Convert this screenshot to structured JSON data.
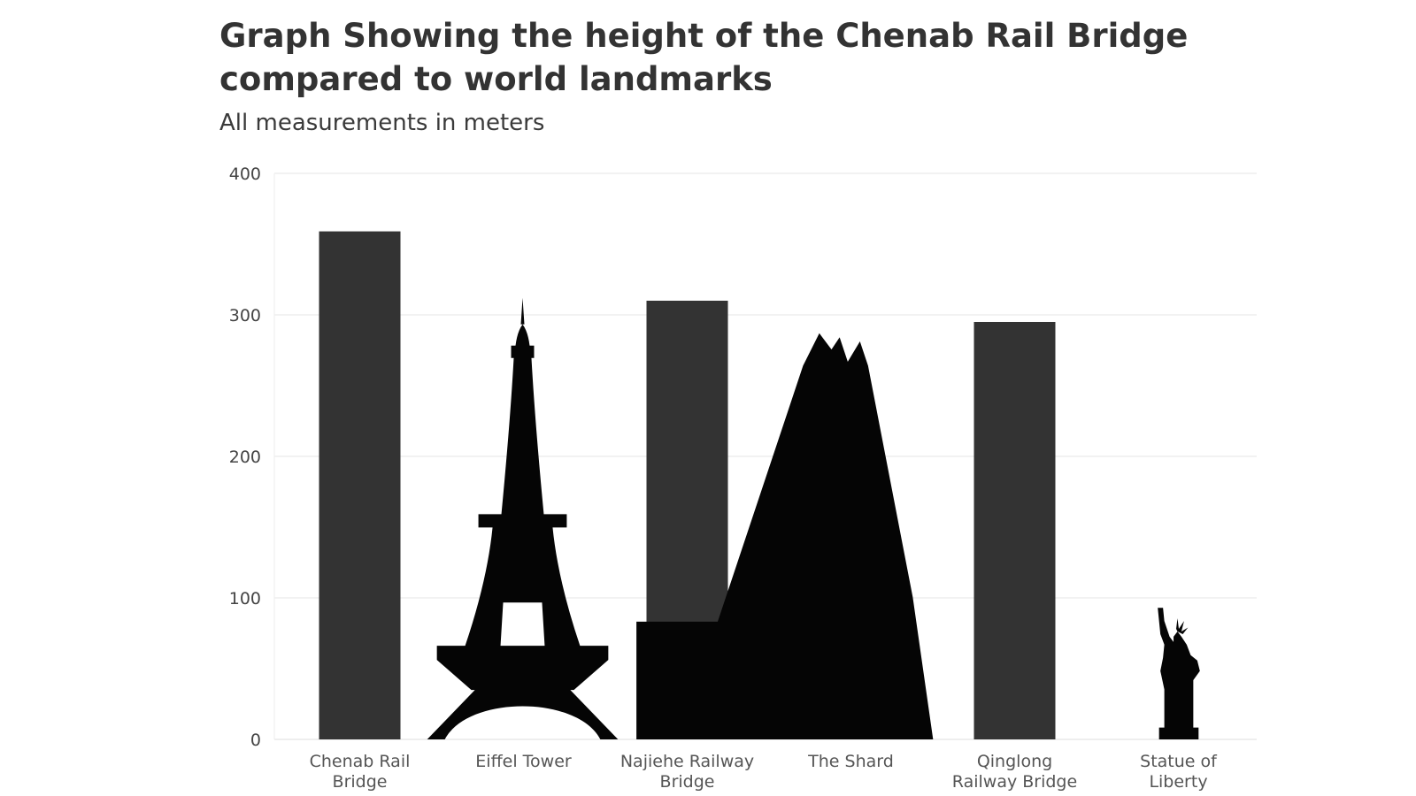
{
  "chart_data": {
    "type": "bar",
    "title": "Graph Showing the height of the Chenab Rail Bridge compared to world landmarks",
    "subtitle": "All measurements in meters",
    "xlabel": "",
    "ylabel": "",
    "ylim": [
      0,
      400
    ],
    "yticks": [
      "0",
      "100",
      "200",
      "300",
      "400"
    ],
    "grid": true,
    "categories": [
      {
        "label_lines": [
          "Chenab Rail",
          "Bridge"
        ],
        "value": 359,
        "style": "bar"
      },
      {
        "label_lines": [
          "Eiffel Tower"
        ],
        "value": 312,
        "style": "eiffel-silhouette"
      },
      {
        "label_lines": [
          "Najiehe Railway",
          "Bridge"
        ],
        "value": 310,
        "style": "bar"
      },
      {
        "label_lines": [
          "The Shard"
        ],
        "value": 287,
        "style": "shard-silhouette"
      },
      {
        "label_lines": [
          "Qinglong",
          "Railway Bridge"
        ],
        "value": 295,
        "style": "bar"
      },
      {
        "label_lines": [
          "Statue of",
          "Liberty"
        ],
        "value": 93,
        "style": "liberty-silhouette"
      }
    ],
    "colors": {
      "bar": "#333333",
      "silhouette": "#050505",
      "grid": "#e4e4e4"
    }
  }
}
